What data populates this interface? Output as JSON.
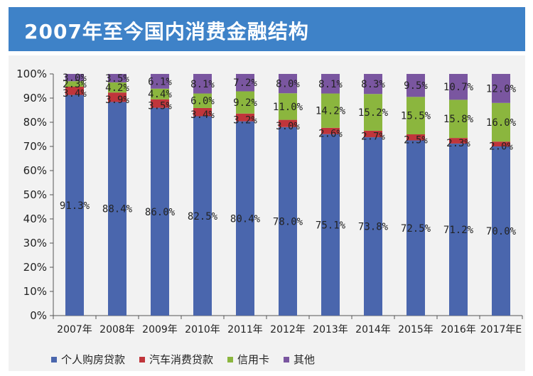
{
  "title": "2007年至今国内消费金融结构",
  "colors": {
    "banner": "#3e82c8",
    "series": [
      "#4a66ad",
      "#c0353b",
      "#8bb63e",
      "#7a56a0"
    ]
  },
  "chart_data": {
    "type": "bar",
    "stacked": true,
    "title": "2007年至今国内消费金融结构",
    "xlabel": "",
    "ylabel": "",
    "ylim": [
      0,
      100
    ],
    "y_ticks": [
      "0%",
      "10%",
      "20%",
      "30%",
      "40%",
      "50%",
      "60%",
      "70%",
      "80%",
      "90%",
      "100%"
    ],
    "categories": [
      "2007年",
      "2008年",
      "2009年",
      "2010年",
      "2011年",
      "2012年",
      "2013年",
      "2014年",
      "2015年",
      "2016年",
      "2017年E"
    ],
    "series": [
      {
        "name": "个人购房贷款",
        "values": [
          91.3,
          88.4,
          86.0,
          82.5,
          80.4,
          78.0,
          75.1,
          73.8,
          72.5,
          71.2,
          70.0
        ],
        "labels": [
          "91.3%",
          "88.4%",
          "86.0%",
          "82.5%",
          "80.4%",
          "78.0%",
          "75.1%",
          "73.8%",
          "72.5%",
          "71.2%",
          "70.0%"
        ]
      },
      {
        "name": "汽车消费贷款",
        "values": [
          3.4,
          3.9,
          3.5,
          3.4,
          3.2,
          3.0,
          2.6,
          2.7,
          2.5,
          2.3,
          2.0
        ],
        "labels": [
          "3.4%",
          "3.9%",
          "3.5%",
          "3.4%",
          "3.2%",
          "3.0%",
          "2.6%",
          "2.7%",
          "2.5%",
          "2.3%",
          "2.0%"
        ]
      },
      {
        "name": "信用卡",
        "values": [
          2.3,
          4.2,
          4.4,
          6.0,
          9.2,
          11.0,
          14.2,
          15.2,
          15.5,
          15.8,
          16.0
        ],
        "labels": [
          "2.3%",
          "4.2%",
          "4.4%",
          "6.0%",
          "9.2%",
          "11.0%",
          "14.2%",
          "15.2%",
          "15.5%",
          "15.8%",
          "16.0%"
        ]
      },
      {
        "name": "其他",
        "values": [
          3.0,
          3.5,
          6.1,
          8.1,
          7.2,
          8.0,
          8.1,
          8.3,
          9.5,
          10.7,
          12.0
        ],
        "labels": [
          "3.0%",
          "3.5%",
          "6.1%",
          "8.1%",
          "7.2%",
          "8.0%",
          "8.1%",
          "8.3%",
          "9.5%",
          "10.7%",
          "12.0%"
        ]
      }
    ],
    "legend_position": "bottom"
  }
}
